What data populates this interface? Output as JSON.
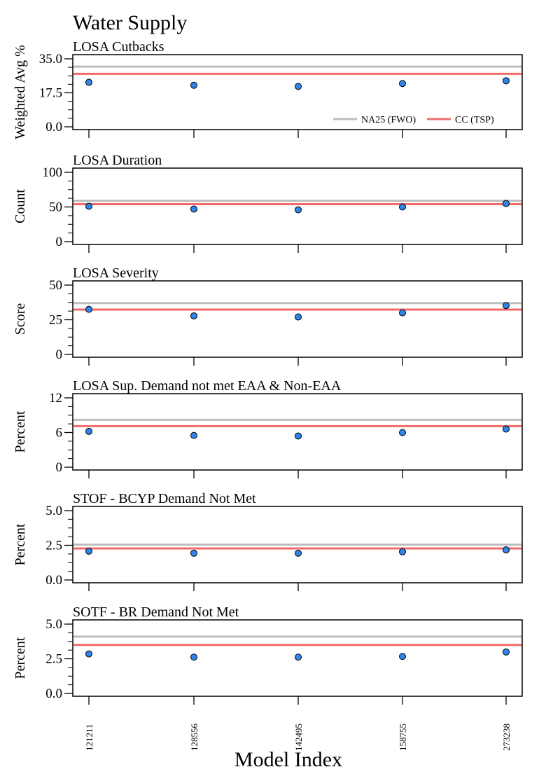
{
  "title": "Water Supply",
  "xlabel": "Model Index",
  "colors": {
    "fwo_line": "#bdbdbd",
    "tsp_line": "#f26b6b",
    "point_fill": "#2e86e8",
    "point_stroke": "#000000"
  },
  "legend": {
    "placement": "bottom-right of first panel",
    "entries": [
      {
        "label": "NA25 (FWO)",
        "color": "#bdbdbd"
      },
      {
        "label": "CC (TSP)",
        "color": "#f26b6b"
      }
    ]
  },
  "chart_data": {
    "type": "scatter",
    "x_categories": [
      "121211",
      "128556",
      "142495",
      "158755",
      "273238"
    ],
    "panels": [
      {
        "title": "LOSA Cutbacks",
        "ylabel": "Weighted Avg %",
        "ylim": [
          0,
          35
        ],
        "yticks": [
          "0.0",
          "17.5",
          "35.0"
        ],
        "values": [
          22.9,
          21.4,
          20.8,
          22.3,
          23.7
        ],
        "reference_lines": [
          {
            "name": "NA25 (FWO)",
            "value": 31.0
          },
          {
            "name": "CC (TSP)",
            "value": 27.3
          }
        ]
      },
      {
        "title": "LOSA Duration",
        "ylabel": "Count",
        "ylim": [
          0,
          100
        ],
        "yticks": [
          "0",
          "50",
          "100"
        ],
        "values": [
          51,
          47,
          46,
          50,
          55
        ],
        "reference_lines": [
          {
            "name": "NA25 (FWO)",
            "value": 59
          },
          {
            "name": "CC (TSP)",
            "value": 54
          }
        ]
      },
      {
        "title": "LOSA Severity",
        "ylabel": "Score",
        "ylim": [
          0,
          50
        ],
        "yticks": [
          "0",
          "25",
          "50"
        ],
        "values": [
          32.5,
          27.8,
          27.0,
          30.0,
          35.2
        ],
        "reference_lines": [
          {
            "name": "NA25 (FWO)",
            "value": 37.0
          },
          {
            "name": "CC (TSP)",
            "value": 32.3
          }
        ]
      },
      {
        "title": "LOSA Sup. Demand not met EAA & Non-EAA",
        "ylabel": "Percent",
        "ylim": [
          0,
          12
        ],
        "yticks": [
          "0",
          "6",
          "12"
        ],
        "values": [
          6.2,
          5.5,
          5.4,
          6.0,
          6.6
        ],
        "reference_lines": [
          {
            "name": "NA25 (FWO)",
            "value": 8.2
          },
          {
            "name": "CC (TSP)",
            "value": 7.1
          }
        ]
      },
      {
        "title": "STOF - BCYP Demand Not Met",
        "ylabel": "Percent",
        "ylim": [
          0,
          5
        ],
        "yticks": [
          "0.0",
          "2.5",
          "5.0"
        ],
        "values": [
          2.08,
          1.93,
          1.93,
          2.03,
          2.17
        ],
        "reference_lines": [
          {
            "name": "NA25 (FWO)",
            "value": 2.55
          },
          {
            "name": "CC (TSP)",
            "value": 2.27
          }
        ]
      },
      {
        "title": "SOTF - BR Demand Not Met",
        "ylabel": "Percent",
        "ylim": [
          0,
          5
        ],
        "yticks": [
          "0.0",
          "2.5",
          "5.0"
        ],
        "values": [
          2.85,
          2.62,
          2.62,
          2.67,
          2.99
        ],
        "reference_lines": [
          {
            "name": "NA25 (FWO)",
            "value": 4.1
          },
          {
            "name": "CC (TSP)",
            "value": 3.5
          }
        ]
      }
    ]
  }
}
